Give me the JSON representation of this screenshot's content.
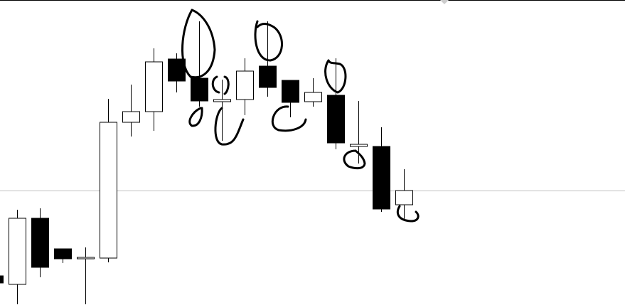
{
  "chart_data": {
    "type": "candlestick",
    "open": [
      41,
      29,
      122,
      79,
      65,
      66,
      257,
      272,
      346,
      319,
      286,
      289,
      336,
      316,
      286,
      295,
      223,
      223,
      141
    ],
    "high": [
      41,
      134,
      136,
      79,
      81,
      290,
      310,
      361,
      354,
      399,
      317,
      347,
      399,
      316,
      319,
      347,
      287,
      250,
      191
    ],
    "low": [
      31,
      1,
      39,
      59,
      1,
      60,
      237,
      245,
      299,
      279,
      231,
      267,
      293,
      264,
      279,
      219,
      199,
      131,
      119
    ],
    "close": [
      31,
      122,
      53,
      65,
      67,
      257,
      272,
      342,
      315,
      287,
      289,
      329,
      306,
      285,
      299,
      228,
      226,
      135,
      161
    ],
    "ylim": [
      0,
      429
    ],
    "reference_line": 161,
    "up_color": "#ffffff",
    "down_color": "#000000"
  }
}
